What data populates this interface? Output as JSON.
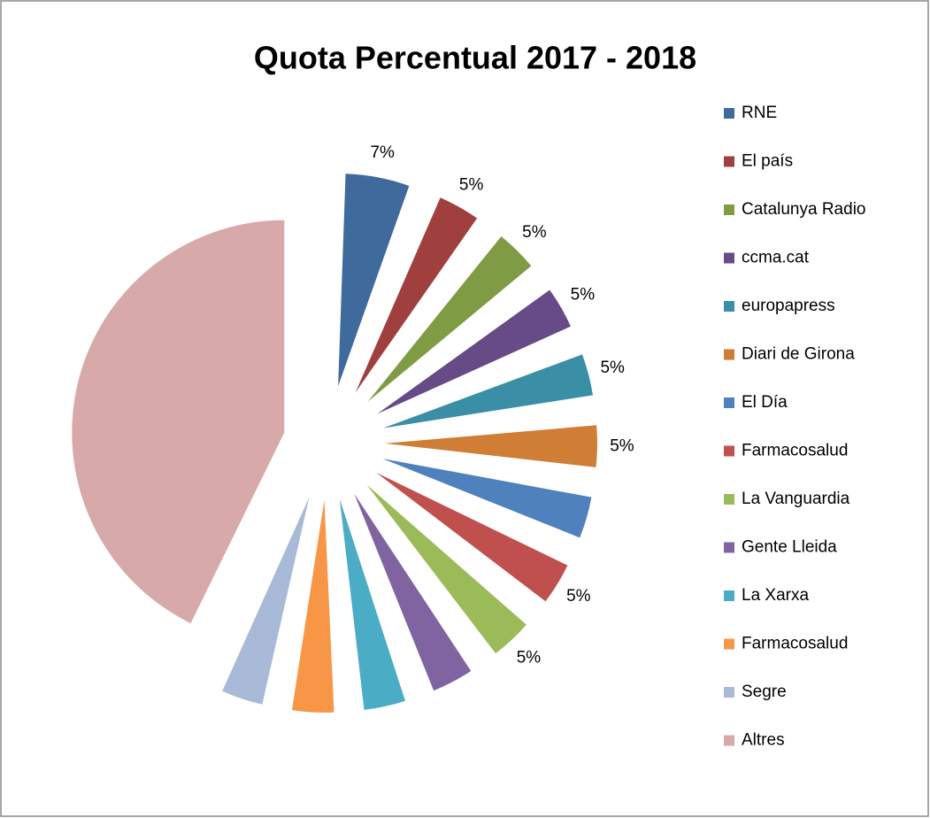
{
  "chart_data": {
    "type": "pie",
    "title": "Quota Percentual 2017 - 2018",
    "categories": [
      "RNE",
      "El país",
      "Catalunya Radio",
      "ccma.cat",
      "europapress",
      "Diari de Girona",
      "El Día",
      "Farmacosalud",
      "La Vanguardia",
      "Gente Lleida",
      "La Xarxa",
      "Farmacosalud",
      "Segre",
      "Altres"
    ],
    "values": [
      7,
      5,
      5,
      5,
      5,
      5,
      5,
      5,
      5,
      5,
      5,
      5,
      5,
      50
    ],
    "value_labels": [
      "7%",
      "5%",
      "5%",
      "5%",
      "5%",
      "5%",
      null,
      "5%",
      "5%",
      null,
      null,
      null,
      null,
      null
    ],
    "colors": [
      "#3f6a9c",
      "#a0403e",
      "#7f9c44",
      "#664b86",
      "#3a8ea6",
      "#d07d36",
      "#4f81bd",
      "#c0504d",
      "#9bbb59",
      "#8064a2",
      "#4bacc6",
      "#f79646",
      "#a9b9d8",
      "#d8a9a9"
    ],
    "legend": "right"
  }
}
